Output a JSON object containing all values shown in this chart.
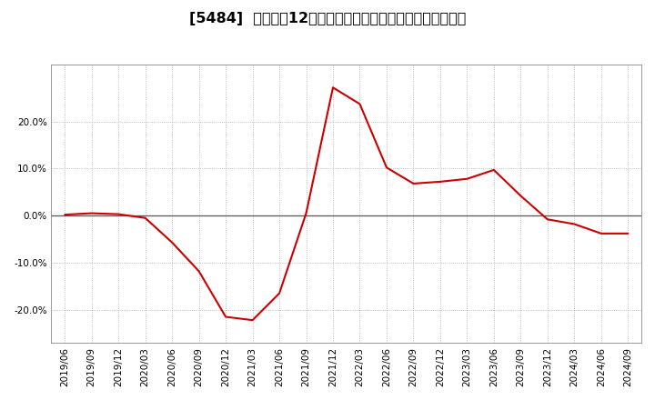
{
  "title": "[5484]  売上高の12か月移動合計の対前年同期増減率の推移",
  "line_color": "#cc0000",
  "bg_color": "#ffffff",
  "plot_bg_color": "#ffffff",
  "grid_color": "#aaaaaa",
  "zero_line_color": "#555555",
  "dates": [
    "2019/06",
    "2019/09",
    "2019/12",
    "2020/03",
    "2020/06",
    "2020/09",
    "2020/12",
    "2021/03",
    "2021/06",
    "2021/09",
    "2021/12",
    "2022/03",
    "2022/06",
    "2022/09",
    "2022/12",
    "2023/03",
    "2023/06",
    "2023/09",
    "2023/12",
    "2024/03",
    "2024/06",
    "2024/09"
  ],
  "values": [
    0.002,
    0.005,
    0.003,
    -0.005,
    -0.057,
    -0.118,
    -0.215,
    -0.222,
    -0.165,
    0.005,
    0.272,
    0.237,
    0.102,
    0.068,
    0.072,
    0.078,
    0.097,
    0.042,
    -0.008,
    -0.018,
    -0.038,
    -0.038
  ],
  "yticks": [
    -0.2,
    -0.1,
    0.0,
    0.1,
    0.2
  ],
  "ylim": [
    -0.27,
    0.32
  ],
  "title_fontsize": 11.5,
  "tick_fontsize": 7.5
}
